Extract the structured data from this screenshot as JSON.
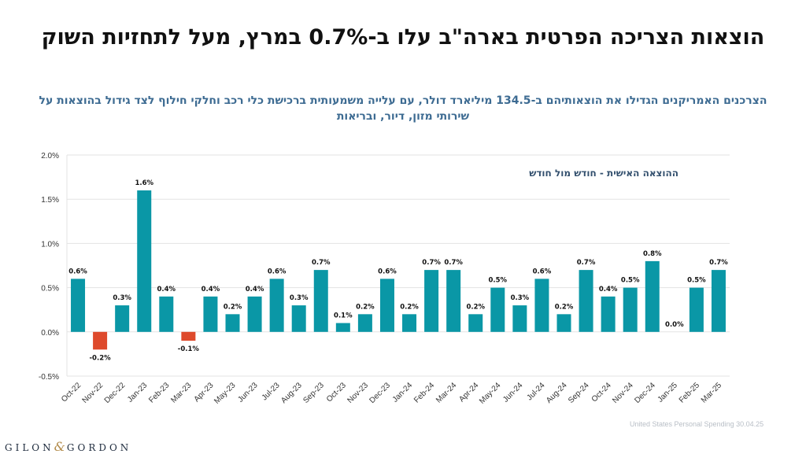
{
  "header": {
    "title": "הוצאות הצריכה הפרטית בארה\"ב עלו ב-0.7% במרץ, מעל לתחזיות השוק",
    "subtitle": "הצרכנים האמריקנים הגדילו את הוצאותיהם ב-134.5 מיליארד דולר, עם עלייה משמעותית ברכישת כלי רכב וחלקי חילוף לצד גידול בהוצאות על שירותי מזון, דיור, ובריאות"
  },
  "colors": {
    "positive": "#0a97a6",
    "negative": "#de4a2c",
    "subtitle": "#3d6b92",
    "legend_text": "#33506e",
    "grid": "#e3e3e3",
    "axis_text": "#333333"
  },
  "chart_data": {
    "type": "bar",
    "legend_label": "ההוצאה האישית - חודש מול חודש",
    "categories": [
      "Oct-22",
      "Nov-22",
      "Dec-22",
      "Jan-23",
      "Feb-23",
      "Mar-23",
      "Apr-23",
      "May-23",
      "Jun-23",
      "Jul-23",
      "Aug-23",
      "Sep-23",
      "Oct-23",
      "Nov-23",
      "Dec-23",
      "Jan-24",
      "Feb-24",
      "Mar-24",
      "Apr-24",
      "May-24",
      "Jun-24",
      "Jul-24",
      "Aug-24",
      "Sep-24",
      "Oct-24",
      "Nov-24",
      "Dec-24",
      "Jan-25",
      "Feb-25",
      "Mar-25"
    ],
    "values": [
      0.6,
      -0.2,
      0.3,
      1.6,
      0.4,
      -0.1,
      0.4,
      0.2,
      0.4,
      0.6,
      0.3,
      0.7,
      0.1,
      0.2,
      0.6,
      0.2,
      0.7,
      0.7,
      0.2,
      0.5,
      0.3,
      0.6,
      0.2,
      0.7,
      0.4,
      0.5,
      0.8,
      0.0,
      0.5,
      0.7
    ],
    "data_labels": [
      "0.6%",
      "-0.2%",
      "0.3%",
      "1.6%",
      "0.4%",
      "-0.1%",
      "0.4%",
      "0.2%",
      "0.4%",
      "0.6%",
      "0.3%",
      "0.7%",
      "0.1%",
      "0.2%",
      "0.6%",
      "0.2%",
      "0.7%",
      "0.7%",
      "0.2%",
      "0.5%",
      "0.3%",
      "0.6%",
      "0.2%",
      "0.7%",
      "0.4%",
      "0.5%",
      "0.8%",
      "0.0%",
      "0.5%",
      "0.7%"
    ],
    "y_ticks": [
      -0.5,
      0.0,
      0.5,
      1.0,
      1.5,
      2.0
    ],
    "y_tick_labels": [
      "-0.5%",
      "0.0%",
      "0.5%",
      "1.0%",
      "1.5%",
      "2.0%"
    ],
    "ylim": [
      -0.5,
      2.0
    ],
    "grid": true,
    "legend_position": "top-right"
  },
  "footer": {
    "source": "United States Personal Spending  30.04.25",
    "logo_left": "GILON",
    "logo_amp": "&",
    "logo_right": "GORDON"
  }
}
